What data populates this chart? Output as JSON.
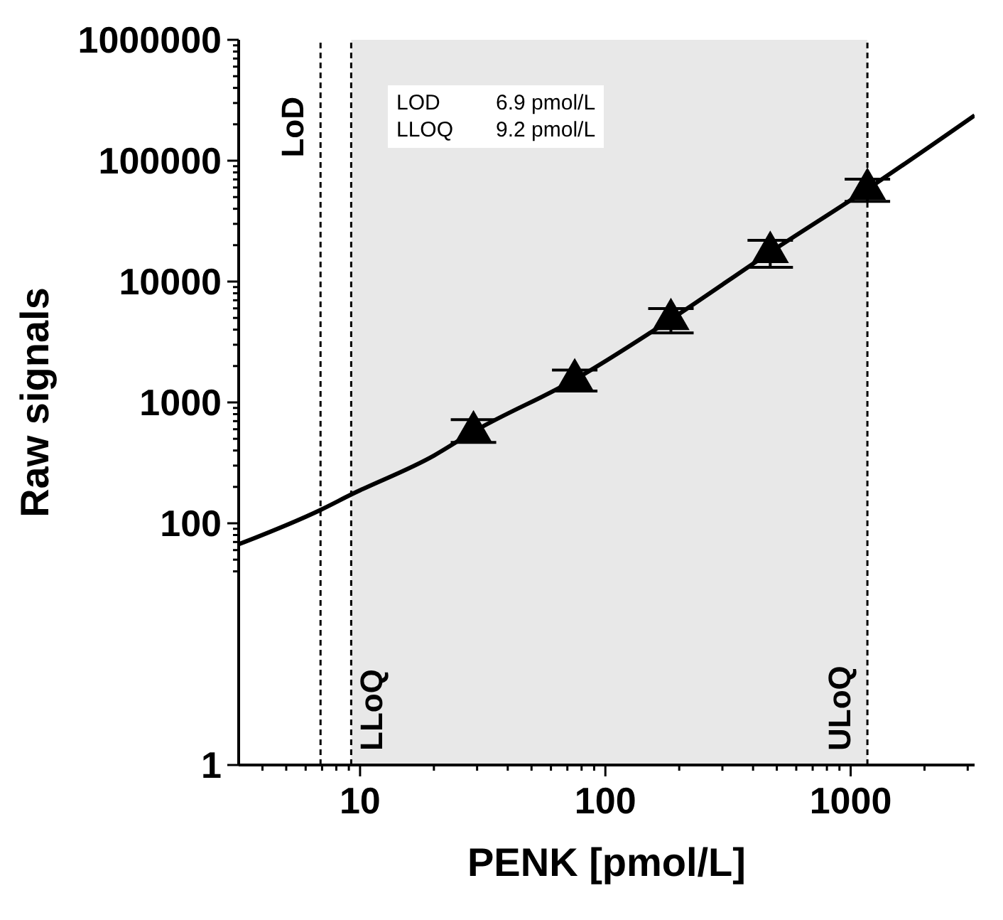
{
  "chart_data": {
    "type": "scatter",
    "xlabel": "PENK [pmol/L]",
    "ylabel": "Raw signals",
    "log": "xy",
    "xlim": [
      3.2,
      3200
    ],
    "xticks": [
      {
        "value": 4,
        "label": null
      },
      {
        "value": 5,
        "label": null
      },
      {
        "value": 6,
        "label": null
      },
      {
        "value": 7,
        "label": null
      },
      {
        "value": 8,
        "label": null
      },
      {
        "value": 9,
        "label": null
      },
      10,
      {
        "value": 20,
        "label": null
      },
      {
        "value": 30,
        "label": null
      },
      {
        "value": 40,
        "label": null
      },
      {
        "value": 50,
        "label": null
      },
      {
        "value": 60,
        "label": null
      },
      {
        "value": 70,
        "label": null
      },
      {
        "value": 80,
        "label": null
      },
      {
        "value": 90,
        "label": null
      },
      100,
      {
        "value": 200,
        "label": null
      },
      {
        "value": 300,
        "label": null
      },
      {
        "value": 400,
        "label": null
      },
      {
        "value": 500,
        "label": null
      },
      {
        "value": 600,
        "label": null
      },
      {
        "value": 700,
        "label": null
      },
      {
        "value": 800,
        "label": null
      },
      {
        "value": 900,
        "label": null
      },
      1000,
      {
        "value": 2000,
        "label": null
      },
      {
        "value": 3000,
        "label": null
      }
    ],
    "ylim": [
      1,
      1000000
    ],
    "yticks": [
      1,
      {
        "value": 40,
        "label": null
      },
      {
        "value": 50,
        "label": null
      },
      {
        "value": 60,
        "label": null
      },
      {
        "value": 70,
        "label": null
      },
      {
        "value": 80,
        "label": null
      },
      {
        "value": 90,
        "label": null
      },
      100,
      {
        "value": 200,
        "label": null
      },
      {
        "value": 300,
        "label": null
      },
      {
        "value": 400,
        "label": null
      },
      {
        "value": 500,
        "label": null
      },
      {
        "value": 600,
        "label": null
      },
      {
        "value": 700,
        "label": null
      },
      {
        "value": 800,
        "label": null
      },
      {
        "value": 900,
        "label": null
      },
      1000,
      {
        "value": 2000,
        "label": null
      },
      {
        "value": 3000,
        "label": null
      },
      {
        "value": 4000,
        "label": null
      },
      {
        "value": 5000,
        "label": null
      },
      {
        "value": 6000,
        "label": null
      },
      {
        "value": 7000,
        "label": null
      },
      {
        "value": 8000,
        "label": null
      },
      {
        "value": 9000,
        "label": null
      },
      10000,
      {
        "value": 20000,
        "label": null
      },
      {
        "value": 30000,
        "label": null
      },
      {
        "value": 40000,
        "label": null
      },
      {
        "value": 50000,
        "label": null
      },
      {
        "value": 60000,
        "label": null
      },
      {
        "value": 70000,
        "label": null
      },
      {
        "value": 80000,
        "label": null
      },
      {
        "value": 90000,
        "label": null
      },
      100000,
      {
        "value": 200000,
        "label": null
      },
      {
        "value": 300000,
        "label": null
      },
      {
        "value": 400000,
        "label": null
      },
      {
        "value": 500000,
        "label": null
      },
      {
        "value": 600000,
        "label": null
      },
      {
        "value": 700000,
        "label": null
      },
      {
        "value": 800000,
        "label": null
      },
      {
        "value": 900000,
        "label": null
      },
      1000000
    ],
    "series": [
      {
        "marker": "triangle",
        "color": "#000000",
        "x": [
          29,
          75,
          185,
          470,
          1170
        ],
        "values": [
          573,
          1545,
          4870,
          17500,
          58200
        ],
        "errors": [
          [
            466,
            721
          ],
          305,
          1110,
          4400,
          12100
        ]
      },
      {
        "type": "line",
        "marker": "none",
        "line_style": "solid",
        "color": "#000000",
        "x": [
          3.2,
          6.9,
          9.2,
          20,
          29,
          75,
          185,
          470,
          1170,
          3200
        ],
        "values": [
          67,
          129,
          173,
          363,
          573,
          1545,
          4870,
          17500,
          58200,
          237000
        ]
      }
    ],
    "ref_lines": [
      {
        "axis": "x",
        "value": 6.9,
        "label": "LoD",
        "line_style": "dashed",
        "color": "#000000"
      },
      {
        "axis": "x",
        "value": 9.2,
        "label": "LLoQ",
        "line_style": "dashed",
        "color": "#000000"
      },
      {
        "axis": "x",
        "value": 1170,
        "label": "ULoQ",
        "line_style": "dashed",
        "color": "#000000"
      }
    ],
    "bands": [
      {
        "axis": "x",
        "from": 9.2,
        "to": 1170,
        "color": "#e8e8e8"
      }
    ],
    "annotations": [
      "LOD 6.9 pmol/L",
      "LLOQ 9.2 pmol/L"
    ]
  }
}
